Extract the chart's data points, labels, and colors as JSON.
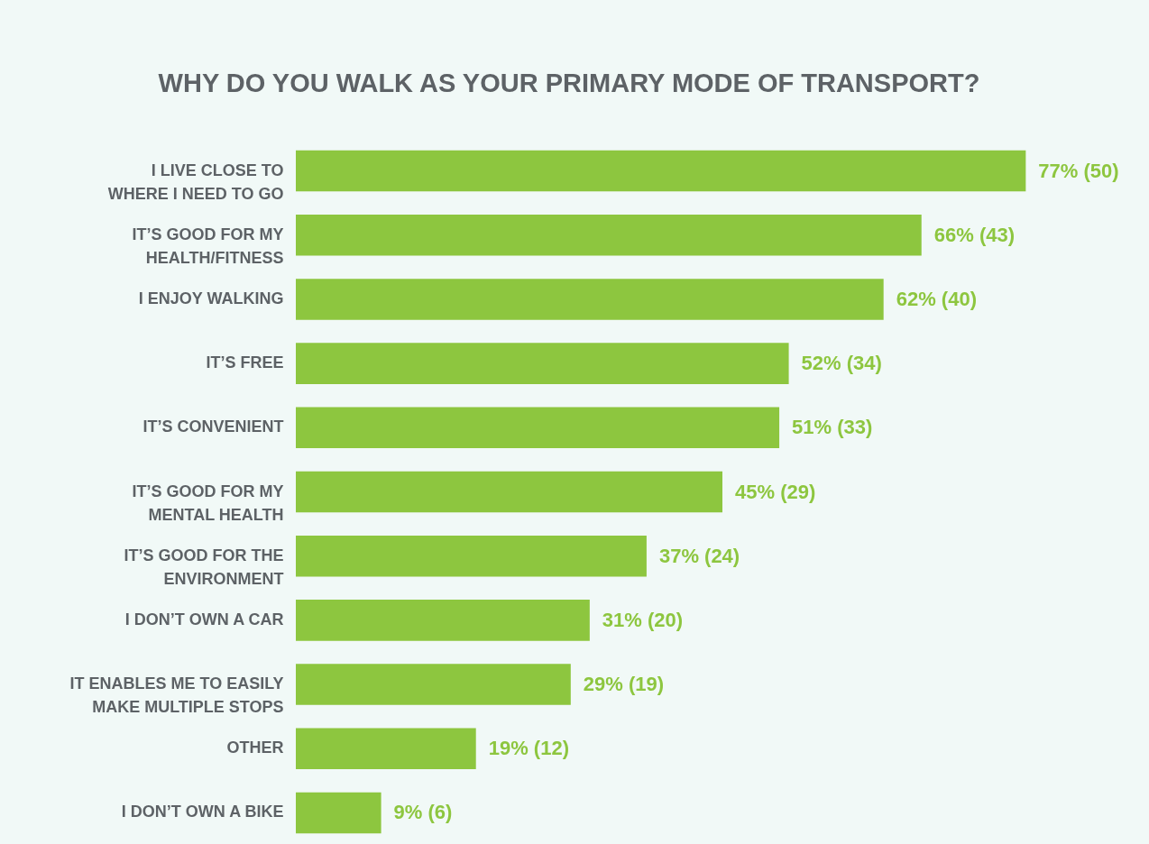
{
  "chart_data": {
    "type": "bar",
    "orientation": "horizontal",
    "title": "WHY DO YOU WALK AS YOUR PRIMARY MODE OF TRANSPORT?",
    "categories": [
      "I LIVE CLOSE TO\nWHERE I NEED TO GO",
      "IT’S GOOD FOR MY\nHEALTH/FITNESS",
      "I ENJOY WALKING",
      "IT’S FREE",
      "IT’S CONVENIENT",
      "IT’S GOOD FOR MY\nMENTAL HEALTH",
      "IT’S GOOD FOR THE\nENVIRONMENT",
      "I DON’T OWN A CAR",
      "IT ENABLES ME TO EASILY\nMAKE MULTIPLE STOPS",
      "OTHER",
      "I DON’T OWN A BIKE"
    ],
    "values": [
      77,
      66,
      62,
      52,
      51,
      45,
      37,
      31,
      29,
      19,
      9
    ],
    "value_labels": [
      "77% (50)",
      "66% (43)",
      "62% (40)",
      "52% (34)",
      "51% (33)",
      "45% (29)",
      "37% (24)",
      "31% (20)",
      "29% (19)",
      "19% (12)",
      "9% (6)"
    ],
    "color": "#8dc63f",
    "xlim": [
      0,
      90
    ],
    "tick_labels": "y"
  }
}
